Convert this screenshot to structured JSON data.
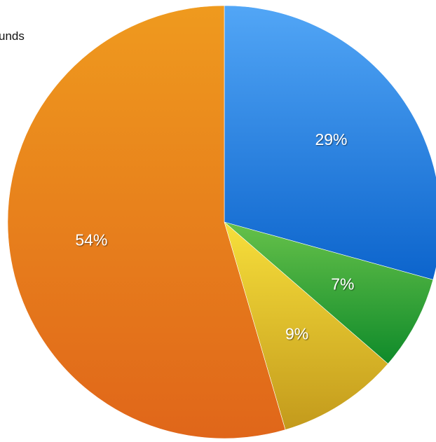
{
  "legend_fragment": "unds",
  "chart_data": {
    "type": "pie",
    "title": "",
    "start_angle_deg": 0,
    "direction": "clockwise",
    "slices": [
      {
        "label": "29%",
        "value": 29,
        "color_light": "#52a6f6",
        "color_dark": "#0c64cc"
      },
      {
        "label": "7%",
        "value": 7,
        "color_light": "#66c14a",
        "color_dark": "#0f8a2a"
      },
      {
        "label": "9%",
        "value": 9,
        "color_light": "#f7df3b",
        "color_dark": "#c39a1c"
      },
      {
        "label": "54%",
        "value": 54,
        "color_light": "#ef9a1e",
        "color_dark": "#e0661a"
      }
    ]
  }
}
